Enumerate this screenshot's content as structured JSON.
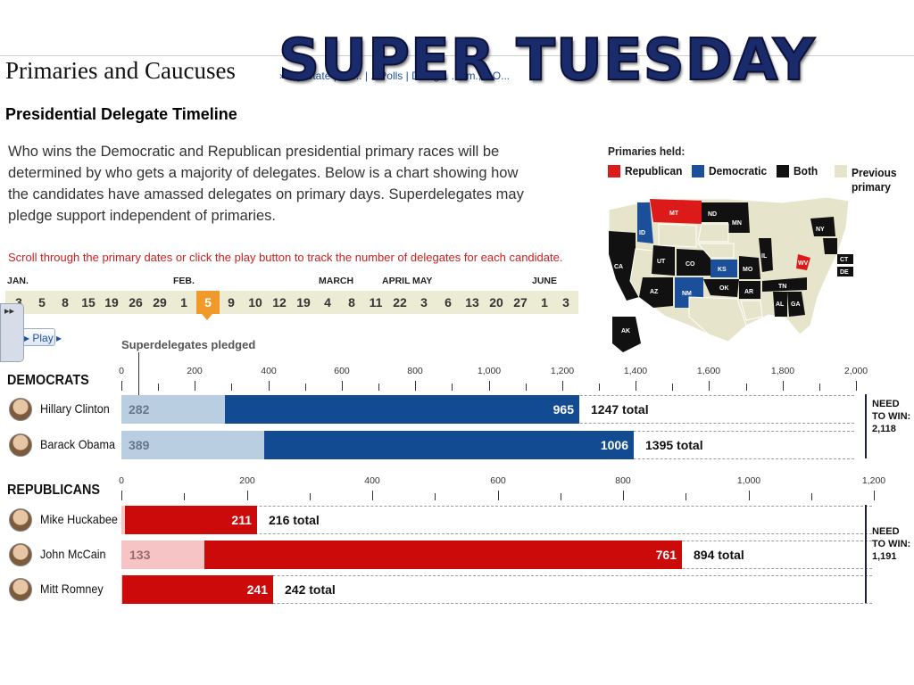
{
  "header": {
    "page_title": "Primaries and Caucuses",
    "nav_text": "» ...y State | Da... | ...Polls | Deleg... ...em., GO...",
    "banner": "SUPER TUESDAY"
  },
  "section_title": "Presidential Delegate Timeline",
  "intro": "Who wins the Democratic and Republican presidential primary races will be determined by who gets a majority of delegates. Below is a chart showing how the candidates have amassed delegates on primary days. Superdelegates may pledge support independent of primaries.",
  "instruction": "Scroll through the primary dates or click the play button to track the number of delegates for each candidate.",
  "timeline": {
    "months": [
      "JAN.",
      "FEB.",
      "MARCH",
      "APRIL",
      "MAY",
      "JUNE"
    ],
    "dates": [
      "3",
      "5",
      "8",
      "15",
      "19",
      "26",
      "29",
      "1",
      "5",
      "9",
      "10",
      "12",
      "19",
      "4",
      "8",
      "11",
      "22",
      "3",
      "6",
      "13",
      "20",
      "27",
      "1",
      "3"
    ],
    "active_index": 8
  },
  "controls": {
    "play_label": "▸ Play ▸",
    "side_handle_icon": "▸▸"
  },
  "superdelegates_label": "Superdelegates pledged",
  "democrats": {
    "title": "DEMOCRATS",
    "axis": {
      "min": 0,
      "max": 2000,
      "tick_labels": [
        "0",
        "200",
        "400",
        "600",
        "800",
        "1,000",
        "1,200",
        "1,400",
        "1,600",
        "1,800",
        "2,000"
      ]
    },
    "need_to_win": "NEED TO WIN: 2,118",
    "candidates": [
      {
        "name": "Hillary Clinton",
        "super": 282,
        "pledged": 965,
        "total": "1247 total"
      },
      {
        "name": "Barack Obama",
        "super": 389,
        "pledged": 1006,
        "total": "1395 total"
      }
    ]
  },
  "republicans": {
    "title": "REPUBLICANS",
    "axis": {
      "min": 0,
      "max": 1200,
      "tick_labels": [
        "0",
        "200",
        "400",
        "600",
        "800",
        "1,000",
        "1,200"
      ]
    },
    "need_to_win": "NEED TO WIN: 1,191",
    "candidates": [
      {
        "name": "Mike Huckabee",
        "super": 5,
        "super_label": "",
        "pledged": 211,
        "total": "216 total"
      },
      {
        "name": "John McCain",
        "super": 133,
        "super_label": "133",
        "pledged": 761,
        "total": "894 total"
      },
      {
        "name": "Mitt Romney",
        "super": 1,
        "super_label": "",
        "pledged": 241,
        "total": "242 total"
      }
    ]
  },
  "map_legend": {
    "heading": "Primaries held:",
    "items": [
      {
        "label": "Republican",
        "color": "#dd1a1a"
      },
      {
        "label": "Democratic",
        "color": "#1b4f9a"
      },
      {
        "label": "Both",
        "color": "#111111"
      },
      {
        "label": "Previous primary",
        "color": "#e6e4cb"
      }
    ],
    "state_labels": [
      "MT",
      "ND",
      "MN",
      "ID",
      "UT",
      "CO",
      "KS",
      "MO",
      "IL",
      "NY",
      "CA",
      "AZ",
      "NM",
      "OK",
      "AR",
      "TN",
      "AL",
      "GA",
      "WV",
      "CT",
      "DE",
      "AK"
    ]
  }
}
